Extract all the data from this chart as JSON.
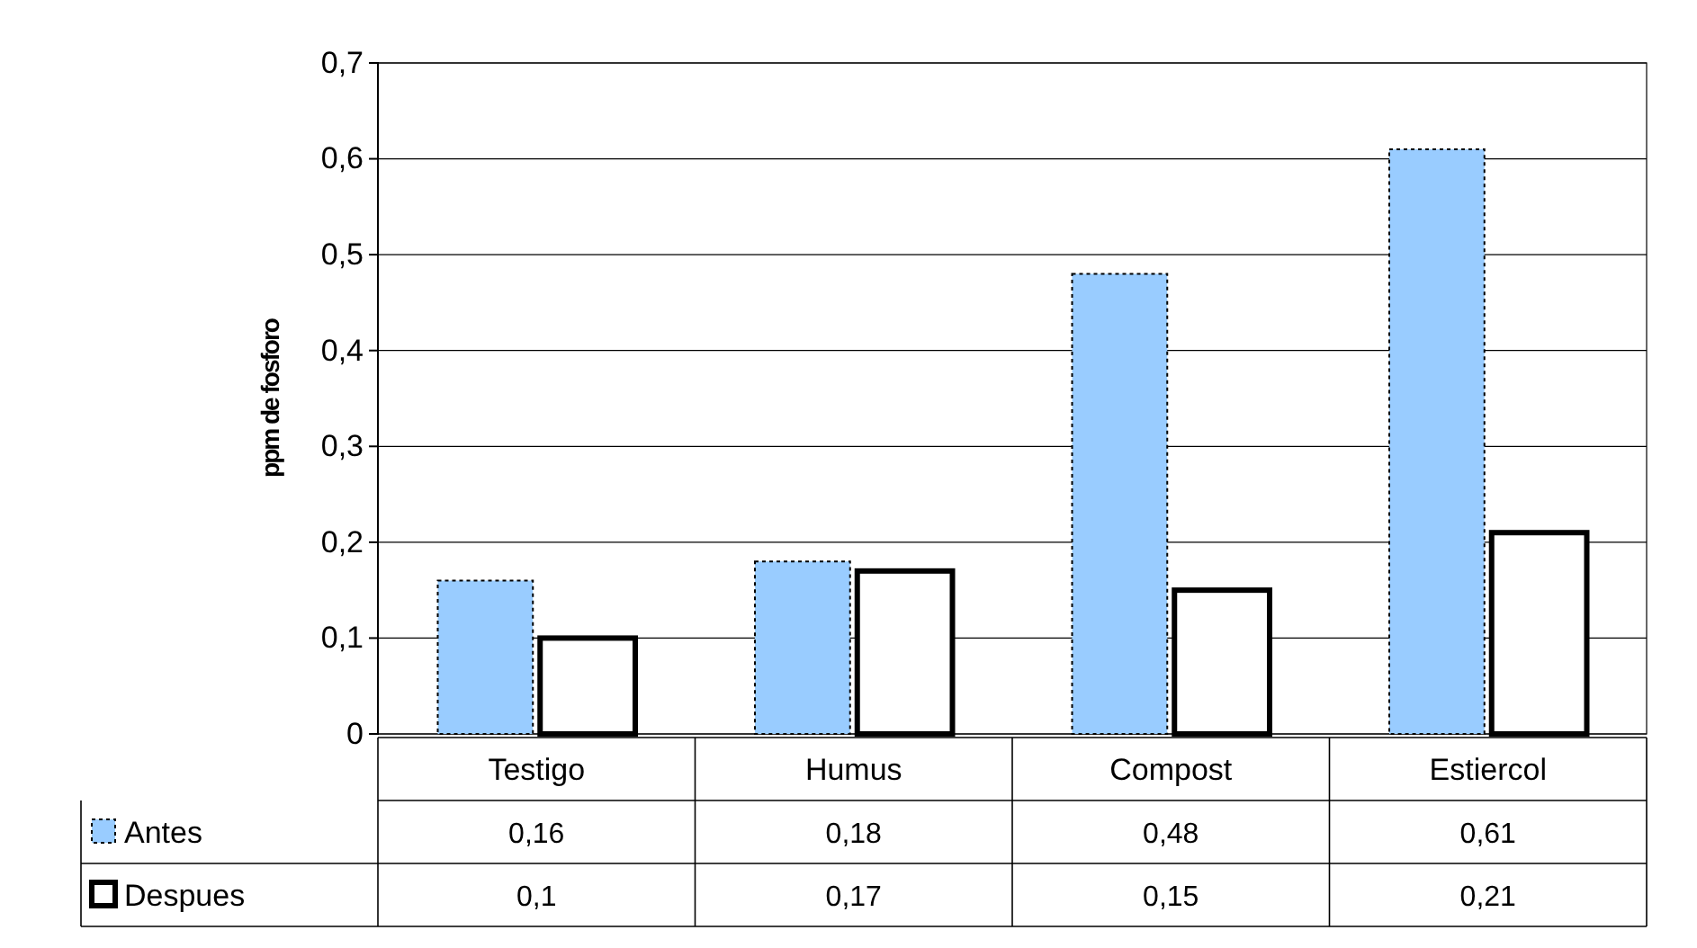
{
  "chart_data": {
    "type": "bar",
    "ylabel": "ppm de fosforo",
    "categories": [
      "Testigo",
      "Humus",
      "Compost",
      "Estiercol"
    ],
    "series": [
      {
        "name": "Antes",
        "color": "#99ccff",
        "values": [
          0.16,
          0.18,
          0.48,
          0.61
        ],
        "value_labels": [
          "0,16",
          "0,18",
          "0,48",
          "0,61"
        ]
      },
      {
        "name": "Despues",
        "color": "#ffffff",
        "values": [
          0.1,
          0.17,
          0.15,
          0.21
        ],
        "value_labels": [
          "0,1",
          "0,17",
          "0,15",
          "0,21"
        ]
      }
    ],
    "ylim": [
      0,
      0.7
    ],
    "yticks": [
      0,
      {
        "value": 0.1,
        "label": "0,1"
      },
      {
        "value": 0.2,
        "label": "0,2"
      },
      {
        "value": 0.3,
        "label": "0,3"
      },
      {
        "value": 0.4,
        "label": "0,4"
      },
      {
        "value": 0.5,
        "label": "0,5"
      },
      {
        "value": 0.6,
        "label": "0,6"
      },
      {
        "value": 0.7,
        "label": "0,7"
      }
    ],
    "grid": "y",
    "legend": "bottom"
  }
}
